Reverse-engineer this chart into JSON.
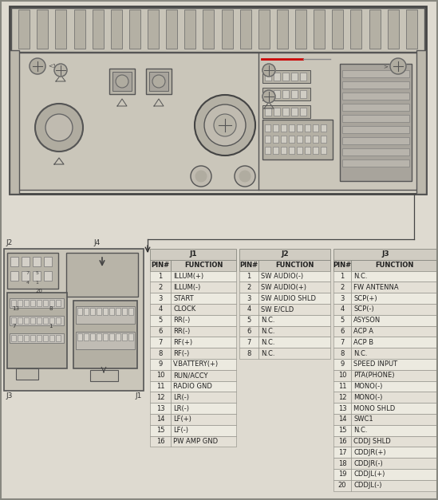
{
  "bg_color": "#dedad0",
  "j1_header": "J1",
  "j1_col1": "PIN#",
  "j1_col2": "FUNCTION",
  "j1_rows": [
    [
      "1",
      "ILLUM(+)"
    ],
    [
      "2",
      "ILLUM(-)"
    ],
    [
      "3",
      "START"
    ],
    [
      "4",
      "CLOCK"
    ],
    [
      "5",
      "RR(-)"
    ],
    [
      "6",
      "RR(-)"
    ],
    [
      "7",
      "RF(+)"
    ],
    [
      "8",
      "RF(-)"
    ],
    [
      "9",
      "V.BATTERY(+)"
    ],
    [
      "10",
      "RUN/ACCY"
    ],
    [
      "11",
      "RADIO GND"
    ],
    [
      "12",
      "LR(-)"
    ],
    [
      "13",
      "LR(-)"
    ],
    [
      "14",
      "LF(+)"
    ],
    [
      "15",
      "LF(-)"
    ],
    [
      "16",
      "PW AMP GND"
    ]
  ],
  "j2_header": "J2",
  "j2_col1": "PIN#",
  "j2_col2": "FUNCTION",
  "j2_rows": [
    [
      "1",
      "SW AUDIO(-)"
    ],
    [
      "2",
      "SW AUDIO(+)"
    ],
    [
      "3",
      "SW AUDIO SHLD"
    ],
    [
      "4",
      "SW E/CLD"
    ],
    [
      "5",
      "N.C."
    ],
    [
      "6",
      "N.C."
    ],
    [
      "7",
      "N.C."
    ],
    [
      "8",
      "N.C."
    ]
  ],
  "j3_header": "J3",
  "j3_col1": "PIN#",
  "j3_col2": "FUNCTION",
  "j3_rows": [
    [
      "1",
      "N.C."
    ],
    [
      "2",
      "FW ANTENNA"
    ],
    [
      "3",
      "SCP(+)"
    ],
    [
      "4",
      "SCP(-)"
    ],
    [
      "5",
      "ASYSON"
    ],
    [
      "6",
      "ACP A"
    ],
    [
      "7",
      "ACP B"
    ],
    [
      "8",
      "N.C."
    ],
    [
      "9",
      "SPEED INPUT"
    ],
    [
      "10",
      "PTA(PHONE)"
    ],
    [
      "11",
      "MONO(-)"
    ],
    [
      "12",
      "MONO(-)"
    ],
    [
      "13",
      "MONO SHLD"
    ],
    [
      "14",
      "SWC1"
    ],
    [
      "15",
      "N.C."
    ],
    [
      "16",
      "CDDJ SHLD"
    ],
    [
      "17",
      "CDDJR(+)"
    ],
    [
      "18",
      "CDDJR(-)"
    ],
    [
      "19",
      "CDDJL(+)"
    ],
    [
      "20",
      "CDDJL(-)"
    ]
  ],
  "line_color": "#555555",
  "table_bg": "#e8e4da",
  "table_header_bg": "#d0ccc2",
  "table_row_even": "#eceae0",
  "table_row_odd": "#e4e0d6",
  "table_border": "#888880",
  "text_color": "#222222"
}
